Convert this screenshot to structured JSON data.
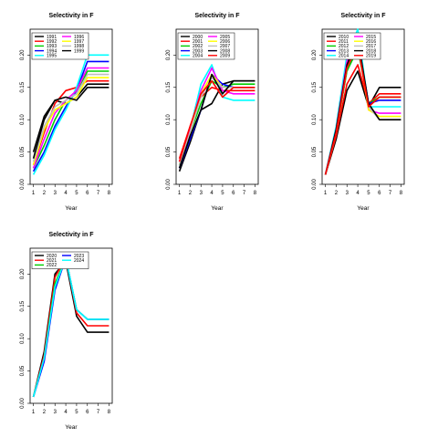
{
  "chart_data": [
    {
      "type": "line",
      "title": "Selectivity in F",
      "xlabel": "Year",
      "ylabel": "",
      "x": [
        1,
        2,
        3,
        4,
        5,
        6,
        7,
        8
      ],
      "ylim": [
        0,
        0.24
      ],
      "yticks": [
        "0.00",
        "0.05",
        "0.10",
        "0.15",
        "0.20"
      ],
      "legend": "top-left",
      "series": [
        {
          "name": "1991",
          "color": "#000000",
          "values": [
            0.05,
            0.105,
            0.13,
            0.125,
            0.135,
            0.155,
            0.155,
            0.155
          ]
        },
        {
          "name": "1992",
          "color": "#ff0000",
          "values": [
            0.03,
            0.08,
            0.125,
            0.145,
            0.15,
            0.16,
            0.16,
            0.16
          ]
        },
        {
          "name": "1993",
          "color": "#00cd00",
          "values": [
            0.025,
            0.06,
            0.1,
            0.13,
            0.14,
            0.175,
            0.175,
            0.175
          ]
        },
        {
          "name": "1994",
          "color": "#0000ff",
          "values": [
            0.02,
            0.05,
            0.09,
            0.12,
            0.145,
            0.19,
            0.19,
            0.19
          ]
        },
        {
          "name": "1995",
          "color": "#00ffff",
          "values": [
            0.015,
            0.045,
            0.085,
            0.115,
            0.15,
            0.2,
            0.2,
            0.2
          ]
        },
        {
          "name": "1996",
          "color": "#ff00ff",
          "values": [
            0.025,
            0.07,
            0.11,
            0.13,
            0.145,
            0.18,
            0.18,
            0.18
          ]
        },
        {
          "name": "1997",
          "color": "#ffff00",
          "values": [
            0.03,
            0.085,
            0.115,
            0.125,
            0.135,
            0.165,
            0.165,
            0.165
          ]
        },
        {
          "name": "1998",
          "color": "#bebebe",
          "values": [
            0.035,
            0.09,
            0.12,
            0.13,
            0.14,
            0.17,
            0.17,
            0.17
          ]
        },
        {
          "name": "1999",
          "color": "#000000",
          "values": [
            0.04,
            0.1,
            0.13,
            0.135,
            0.13,
            0.15,
            0.15,
            0.15
          ]
        }
      ]
    },
    {
      "type": "line",
      "title": "Selectivity in F",
      "xlabel": "Year",
      "ylabel": "",
      "x": [
        1,
        2,
        3,
        4,
        5,
        6,
        7,
        8
      ],
      "ylim": [
        0,
        0.24
      ],
      "yticks": [
        "0.00",
        "0.05",
        "0.10",
        "0.15",
        "0.20"
      ],
      "legend": "top-left",
      "series": [
        {
          "name": "2000",
          "color": "#000000",
          "values": [
            0.02,
            0.065,
            0.115,
            0.125,
            0.155,
            0.16,
            0.16,
            0.16
          ]
        },
        {
          "name": "2001",
          "color": "#ff0000",
          "values": [
            0.04,
            0.09,
            0.135,
            0.15,
            0.145,
            0.145,
            0.145,
            0.145
          ]
        },
        {
          "name": "2002",
          "color": "#00cd00",
          "values": [
            0.03,
            0.08,
            0.125,
            0.16,
            0.15,
            0.155,
            0.155,
            0.155
          ]
        },
        {
          "name": "2003",
          "color": "#0000ff",
          "values": [
            0.025,
            0.07,
            0.115,
            0.17,
            0.155,
            0.15,
            0.15,
            0.15
          ]
        },
        {
          "name": "2004",
          "color": "#00ffff",
          "values": [
            0.03,
            0.085,
            0.155,
            0.185,
            0.135,
            0.13,
            0.13,
            0.13
          ]
        },
        {
          "name": "2005",
          "color": "#ff00ff",
          "values": [
            0.035,
            0.085,
            0.145,
            0.18,
            0.145,
            0.14,
            0.14,
            0.14
          ]
        },
        {
          "name": "2006",
          "color": "#ffff00",
          "values": [
            0.03,
            0.08,
            0.14,
            0.17,
            0.15,
            0.15,
            0.15,
            0.15
          ]
        },
        {
          "name": "2007",
          "color": "#bebebe",
          "values": [
            0.03,
            0.08,
            0.135,
            0.165,
            0.15,
            0.15,
            0.15,
            0.15
          ]
        },
        {
          "name": "2008",
          "color": "#000000",
          "values": [
            0.025,
            0.075,
            0.115,
            0.17,
            0.14,
            0.16,
            0.16,
            0.16
          ]
        },
        {
          "name": "2009",
          "color": "#ff0000",
          "values": [
            0.035,
            0.09,
            0.14,
            0.16,
            0.135,
            0.15,
            0.15,
            0.15
          ]
        }
      ]
    },
    {
      "type": "line",
      "title": "Selectivity in F",
      "xlabel": "Year",
      "ylabel": "",
      "x": [
        1,
        2,
        3,
        4,
        5,
        6,
        7,
        8
      ],
      "ylim": [
        0,
        0.24
      ],
      "yticks": [
        "0.00",
        "0.05",
        "0.10",
        "0.15",
        "0.20"
      ],
      "legend": "top-left",
      "series": [
        {
          "name": "2010",
          "color": "#000000",
          "values": [
            0.015,
            0.07,
            0.145,
            0.175,
            0.12,
            0.15,
            0.15,
            0.15
          ]
        },
        {
          "name": "2011",
          "color": "#ff0000",
          "values": [
            0.015,
            0.075,
            0.155,
            0.185,
            0.125,
            0.14,
            0.14,
            0.14
          ]
        },
        {
          "name": "2012",
          "color": "#00cd00",
          "values": [
            0.015,
            0.08,
            0.175,
            0.21,
            0.125,
            0.135,
            0.135,
            0.135
          ]
        },
        {
          "name": "2013",
          "color": "#0000ff",
          "values": [
            0.015,
            0.085,
            0.185,
            0.225,
            0.125,
            0.13,
            0.13,
            0.13
          ]
        },
        {
          "name": "2014",
          "color": "#00ffff",
          "values": [
            0.015,
            0.09,
            0.2,
            0.24,
            0.12,
            0.12,
            0.12,
            0.12
          ]
        },
        {
          "name": "2015",
          "color": "#ff00ff",
          "values": [
            0.015,
            0.085,
            0.19,
            0.23,
            0.115,
            0.11,
            0.11,
            0.11
          ]
        },
        {
          "name": "2016",
          "color": "#ffff00",
          "values": [
            0.015,
            0.08,
            0.18,
            0.22,
            0.115,
            0.105,
            0.105,
            0.105
          ]
        },
        {
          "name": "2017",
          "color": "#bebebe",
          "values": [
            0.015,
            0.08,
            0.18,
            0.22,
            0.12,
            0.1,
            0.1,
            0.1
          ]
        },
        {
          "name": "2018",
          "color": "#000000",
          "values": [
            0.015,
            0.085,
            0.185,
            0.225,
            0.125,
            0.1,
            0.1,
            0.1
          ]
        },
        {
          "name": "2019",
          "color": "#ff0000",
          "values": [
            0.015,
            0.08,
            0.18,
            0.215,
            0.12,
            0.135,
            0.135,
            0.135
          ]
        }
      ]
    },
    {
      "type": "line",
      "title": "Selectivity in F",
      "xlabel": "Year",
      "ylabel": "",
      "x": [
        1,
        2,
        3,
        4,
        5,
        6,
        7,
        8
      ],
      "ylim": [
        0,
        0.24
      ],
      "yticks": [
        "0.00",
        "0.05",
        "0.10",
        "0.15",
        "0.20"
      ],
      "legend": "top-left",
      "series": [
        {
          "name": "2020",
          "color": "#000000",
          "values": [
            0.01,
            0.08,
            0.2,
            0.22,
            0.135,
            0.11,
            0.11,
            0.11
          ]
        },
        {
          "name": "2021",
          "color": "#ff0000",
          "values": [
            0.01,
            0.075,
            0.195,
            0.225,
            0.14,
            0.12,
            0.12,
            0.12
          ]
        },
        {
          "name": "2022",
          "color": "#00cd00",
          "values": [
            0.01,
            0.07,
            0.185,
            0.225,
            0.145,
            0.13,
            0.13,
            0.13
          ]
        },
        {
          "name": "2023",
          "color": "#0000ff",
          "values": [
            0.01,
            0.065,
            0.175,
            0.225,
            0.145,
            0.13,
            0.13,
            0.13
          ]
        },
        {
          "name": "2024",
          "color": "#00ffff",
          "values": [
            0.01,
            0.07,
            0.18,
            0.225,
            0.145,
            0.13,
            0.13,
            0.13
          ]
        }
      ]
    }
  ]
}
